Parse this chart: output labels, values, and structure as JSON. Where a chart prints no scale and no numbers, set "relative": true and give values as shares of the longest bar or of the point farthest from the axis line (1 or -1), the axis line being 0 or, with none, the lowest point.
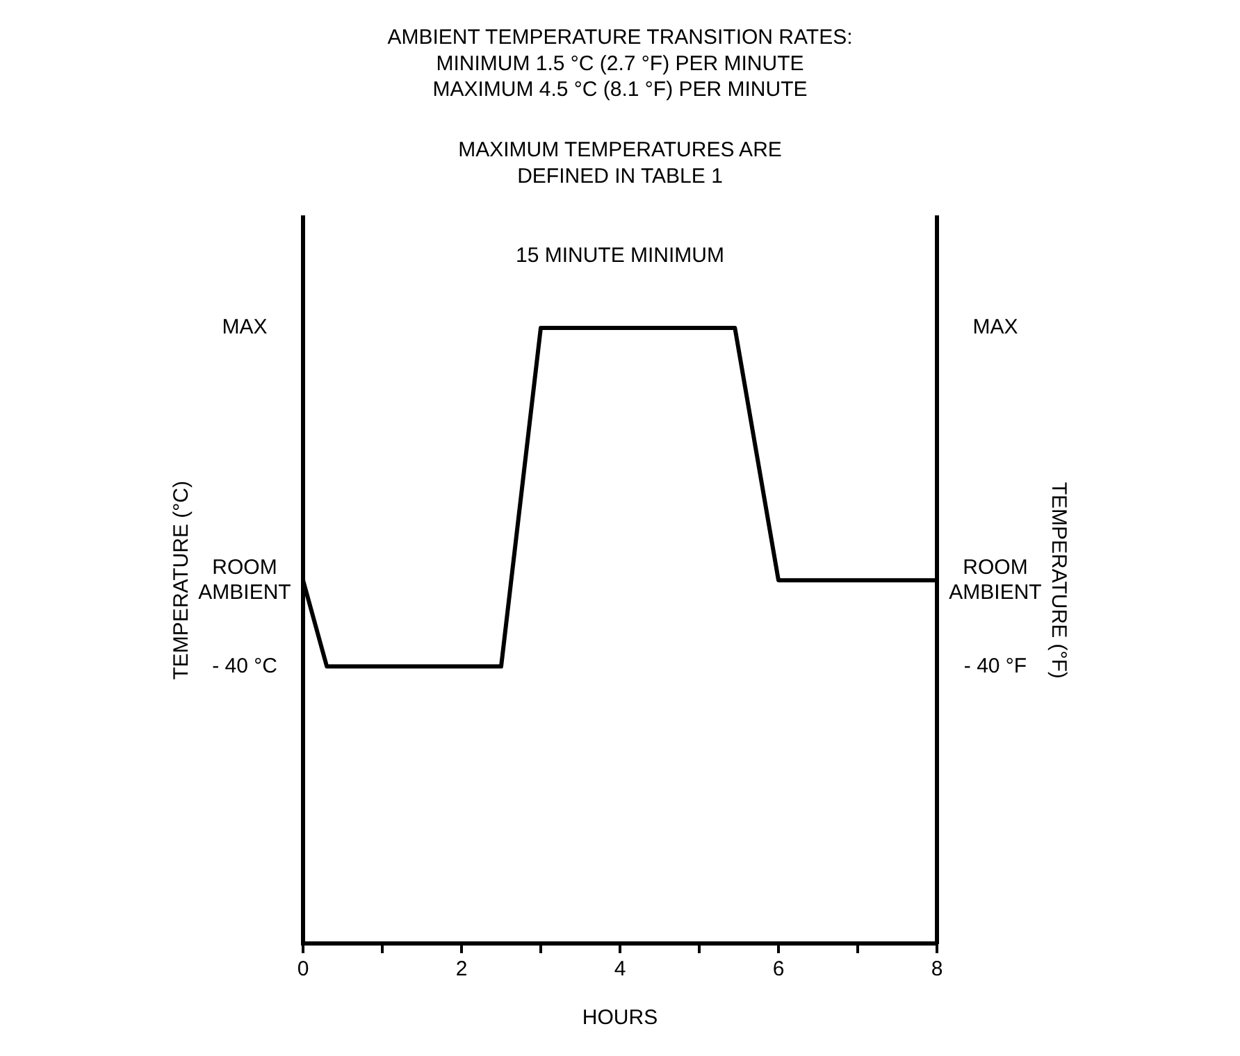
{
  "chart_data": {
    "type": "line",
    "title": "AMBIENT TEMPERATURE TRANSITION RATES:\nMINIMUM 1.5 °C (2.7 °F) PER MINUTE\nMAXIMUM 4.5 °C (8.1 °F) PER MINUTE",
    "xlabel": "HOURS",
    "ylabel": "TEMPERATURE (°C)",
    "y2label": "TEMPERATURE (°F)",
    "relative": true,
    "x": [
      0,
      0.3,
      2.5,
      3.0,
      5.45,
      6.0,
      8
    ],
    "series": [
      {
        "color": "#000000",
        "values": [
          0.59,
          0.45,
          0.45,
          1,
          1,
          0.59,
          0.59
        ]
      }
    ],
    "xlim": [
      0,
      8
    ],
    "xticks": [
      0,
      {
        "value": 1,
        "label": null
      },
      2,
      {
        "value": 3,
        "label": null
      },
      4,
      {
        "value": 5,
        "label": null
      },
      6,
      {
        "value": 7,
        "label": null
      },
      8
    ],
    "grid": false,
    "legend": false,
    "marker": "none",
    "line_style": "solid",
    "annotations": [
      "MAXIMUM TEMPERATURES ARE\nDEFINED IN TABLE 1",
      "15 MINUTE MINIMUM",
      "MAX",
      "ROOM AMBIENT",
      "- 40 °C",
      "MAX",
      "ROOM AMBIENT",
      "- 40 °F"
    ]
  }
}
